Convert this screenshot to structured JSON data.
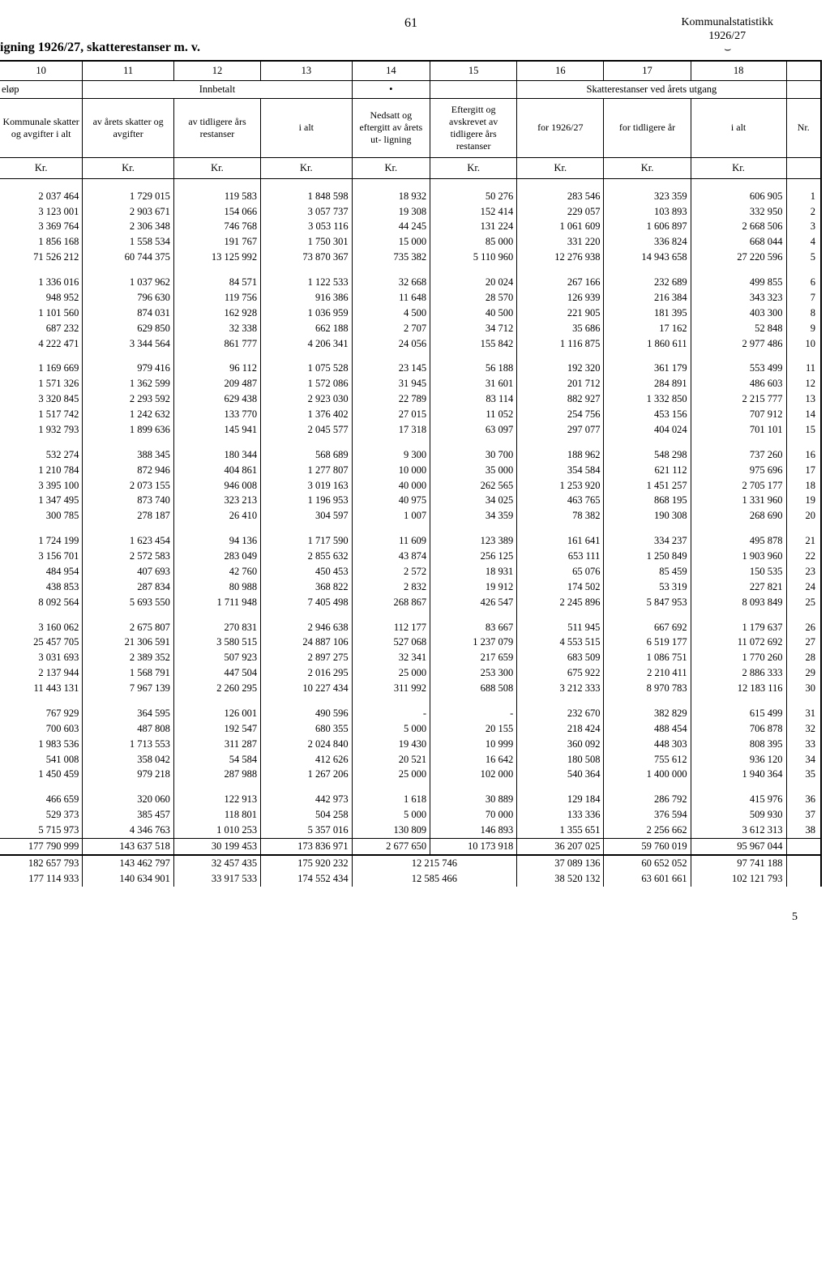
{
  "page_number": "61",
  "corner_title": "Kommunalstatistikk",
  "corner_year": "1926/27",
  "table_title": "igning 1926/27, skatterestanser m. v.",
  "col_numbers": [
    "10",
    "11",
    "12",
    "13",
    "14",
    "15",
    "16",
    "17",
    "18"
  ],
  "group_elop": "eløp",
  "group_innbetalt": "Innbetalt",
  "group_dot": "•",
  "group_skatterest": "Skatterestanser ved årets utgang",
  "headers": {
    "c10": "Kommunale skatter og avgifter i alt",
    "c11": "av årets skatter og avgifter",
    "c12": "av tidligere års restanser",
    "c13": "i alt",
    "c14": "Nedsatt og eftergitt av årets ut- ligning",
    "c15": "Eftergitt og avskrevet av tidligere års restanser",
    "c16": "for 1926/27",
    "c17": "for tidligere år",
    "c18": "i alt",
    "nr": "Nr."
  },
  "unit": "Kr.",
  "groups": [
    [
      [
        "2 037 464",
        "1 729 015",
        "119 583",
        "1 848 598",
        "18 932",
        "50 276",
        "283 546",
        "323 359",
        "606 905",
        "1"
      ],
      [
        "3 123 001",
        "2 903 671",
        "154 066",
        "3 057 737",
        "19 308",
        "152 414",
        "229 057",
        "103 893",
        "332 950",
        "2"
      ],
      [
        "3 369 764",
        "2 306 348",
        "746 768",
        "3 053 116",
        "44 245",
        "131 224",
        "1 061 609",
        "1 606 897",
        "2 668 506",
        "3"
      ],
      [
        "1 856 168",
        "1 558 534",
        "191 767",
        "1 750 301",
        "15 000",
        "85 000",
        "331 220",
        "336 824",
        "668 044",
        "4"
      ],
      [
        "71 526 212",
        "60 744 375",
        "13 125 992",
        "73 870 367",
        "735 382",
        "5 110 960",
        "12 276 938",
        "14 943 658",
        "27 220 596",
        "5"
      ]
    ],
    [
      [
        "1 336 016",
        "1 037 962",
        "84 571",
        "1 122 533",
        "32 668",
        "20 024",
        "267 166",
        "232 689",
        "499 855",
        "6"
      ],
      [
        "948 952",
        "796 630",
        "119 756",
        "916 386",
        "11 648",
        "28 570",
        "126 939",
        "216 384",
        "343 323",
        "7"
      ],
      [
        "1 101 560",
        "874 031",
        "162 928",
        "1 036 959",
        "4 500",
        "40 500",
        "221 905",
        "181 395",
        "403 300",
        "8"
      ],
      [
        "687 232",
        "629 850",
        "32 338",
        "662 188",
        "2 707",
        "34 712",
        "35 686",
        "17 162",
        "52 848",
        "9"
      ],
      [
        "4 222 471",
        "3 344 564",
        "861 777",
        "4 206 341",
        "24 056",
        "155 842",
        "1 116 875",
        "1 860 611",
        "2 977 486",
        "10"
      ]
    ],
    [
      [
        "1 169 669",
        "979 416",
        "96 112",
        "1 075 528",
        "23 145",
        "56 188",
        "192 320",
        "361 179",
        "553 499",
        "11"
      ],
      [
        "1 571 326",
        "1 362 599",
        "209 487",
        "1 572 086",
        "31 945",
        "31 601",
        "201 712",
        "284 891",
        "486 603",
        "12"
      ],
      [
        "3 320 845",
        "2 293 592",
        "629 438",
        "2 923 030",
        "22 789",
        "83 114",
        "882 927",
        "1 332 850",
        "2 215 777",
        "13"
      ],
      [
        "1 517 742",
        "1 242 632",
        "133 770",
        "1 376 402",
        "27 015",
        "11 052",
        "254 756",
        "453 156",
        "707 912",
        "14"
      ],
      [
        "1 932 793",
        "1 899 636",
        "145 941",
        "2 045 577",
        "17 318",
        "63 097",
        "297 077",
        "404 024",
        "701 101",
        "15"
      ]
    ],
    [
      [
        "532 274",
        "388 345",
        "180 344",
        "568 689",
        "9 300",
        "30 700",
        "188 962",
        "548 298",
        "737 260",
        "16"
      ],
      [
        "1 210 784",
        "872 946",
        "404 861",
        "1 277 807",
        "10 000",
        "35 000",
        "354 584",
        "621 112",
        "975 696",
        "17"
      ],
      [
        "3 395 100",
        "2 073 155",
        "946 008",
        "3 019 163",
        "40 000",
        "262 565",
        "1 253 920",
        "1 451 257",
        "2 705 177",
        "18"
      ],
      [
        "1 347 495",
        "873 740",
        "323 213",
        "1 196 953",
        "40 975",
        "34 025",
        "463 765",
        "868 195",
        "1 331 960",
        "19"
      ],
      [
        "300 785",
        "278 187",
        "26 410",
        "304 597",
        "1 007",
        "34 359",
        "78 382",
        "190 308",
        "268 690",
        "20"
      ]
    ],
    [
      [
        "1 724 199",
        "1 623 454",
        "94 136",
        "1 717 590",
        "11 609",
        "123 389",
        "161 641",
        "334 237",
        "495 878",
        "21"
      ],
      [
        "3 156 701",
        "2 572 583",
        "283 049",
        "2 855 632",
        "43 874",
        "256 125",
        "653 111",
        "1 250 849",
        "1 903 960",
        "22"
      ],
      [
        "484 954",
        "407 693",
        "42 760",
        "450 453",
        "2 572",
        "18 931",
        "65 076",
        "85 459",
        "150 535",
        "23"
      ],
      [
        "438 853",
        "287 834",
        "80 988",
        "368 822",
        "2 832",
        "19 912",
        "174 502",
        "53 319",
        "227 821",
        "24"
      ],
      [
        "8 092 564",
        "5 693 550",
        "1 711 948",
        "7 405 498",
        "268 867",
        "426 547",
        "2 245 896",
        "5 847 953",
        "8 093 849",
        "25"
      ]
    ],
    [
      [
        "3 160 062",
        "2 675 807",
        "270 831",
        "2 946 638",
        "112 177",
        "83 667",
        "511 945",
        "667 692",
        "1 179 637",
        "26"
      ],
      [
        "25 457 705",
        "21 306 591",
        "3 580 515",
        "24 887 106",
        "527 068",
        "1 237 079",
        "4 553 515",
        "6 519 177",
        "11 072 692",
        "27"
      ],
      [
        "3 031 693",
        "2 389 352",
        "507 923",
        "2 897 275",
        "32 341",
        "217 659",
        "683 509",
        "1 086 751",
        "1 770 260",
        "28"
      ],
      [
        "2 137 944",
        "1 568 791",
        "447 504",
        "2 016 295",
        "25 000",
        "253 300",
        "675 922",
        "2 210 411",
        "2 886 333",
        "29"
      ],
      [
        "11 443 131",
        "7 967 139",
        "2 260 295",
        "10 227 434",
        "311 992",
        "688 508",
        "3 212 333",
        "8 970 783",
        "12 183 116",
        "30"
      ]
    ],
    [
      [
        "767 929",
        "364 595",
        "126 001",
        "490 596",
        "-",
        "-",
        "232 670",
        "382 829",
        "615 499",
        "31"
      ],
      [
        "700 603",
        "487 808",
        "192 547",
        "680 355",
        "5 000",
        "20 155",
        "218 424",
        "488 454",
        "706 878",
        "32"
      ],
      [
        "1 983 536",
        "1 713 553",
        "311 287",
        "2 024 840",
        "19 430",
        "10 999",
        "360 092",
        "448 303",
        "808 395",
        "33"
      ],
      [
        "541 008",
        "358 042",
        "54 584",
        "412 626",
        "20 521",
        "16 642",
        "180 508",
        "755 612",
        "936 120",
        "34"
      ],
      [
        "1 450 459",
        "979 218",
        "287 988",
        "1 267 206",
        "25 000",
        "102 000",
        "540 364",
        "1 400 000",
        "1 940 364",
        "35"
      ]
    ],
    [
      [
        "466 659",
        "320 060",
        "122 913",
        "442 973",
        "1 618",
        "30 889",
        "129 184",
        "286 792",
        "415 976",
        "36"
      ],
      [
        "529 373",
        "385 457",
        "118 801",
        "504 258",
        "5 000",
        "70 000",
        "133 336",
        "376 594",
        "509 930",
        "37"
      ],
      [
        "5 715 973",
        "4 346 763",
        "1 010 253",
        "5 357 016",
        "130 809",
        "146 893",
        "1 355 651",
        "2 256 662",
        "3 612 313",
        "38"
      ]
    ]
  ],
  "total_row": [
    "177 790 999",
    "143 637 518",
    "30 199 453",
    "173 836 971",
    "2 677 650",
    "10 173 918",
    "36 207 025",
    "59 760 019",
    "95 967 044",
    ""
  ],
  "brace_text": "⏟",
  "bottom_rows": [
    [
      "182 657 793",
      "143 462 797",
      "32 457 435",
      "175 920 232",
      "12 215 746",
      "",
      "37 089 136",
      "60 652 052",
      "97 741 188",
      ""
    ],
    [
      "177 114 933",
      "140 634 901",
      "33 917 533",
      "174 552 434",
      "12 585 466",
      "",
      "38 520 132",
      "63 601 661",
      "102 121 793",
      ""
    ]
  ],
  "footer_page": "5"
}
